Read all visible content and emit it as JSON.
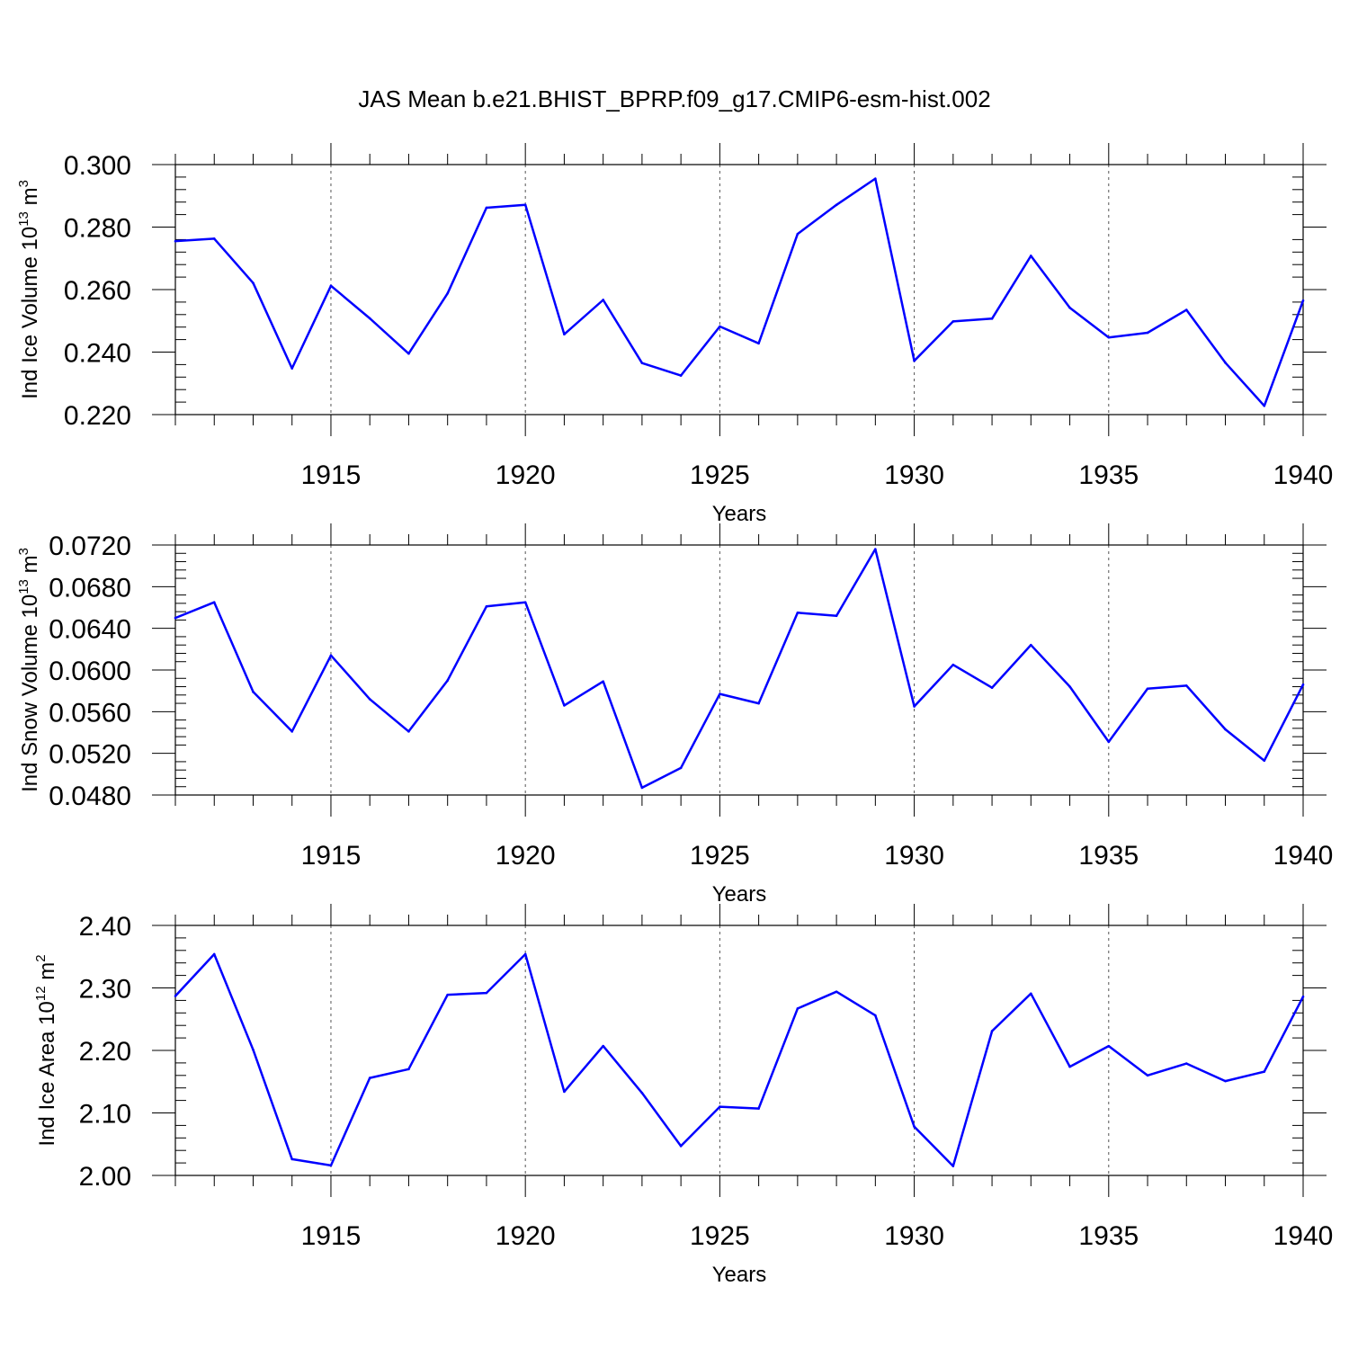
{
  "title": "JAS Mean b.e21.BHIST_BPRP.f09_g17.CMIP6-esm-hist.002",
  "colors": {
    "line": "#0000ff",
    "axis": "#000000",
    "grid": "#555555"
  },
  "chart_data": [
    {
      "type": "line",
      "ylabel": {
        "text": "Ind Ice Volume 10",
        "sup": "13",
        "unit": " m",
        "unit_sup": "3"
      },
      "xlabel": "Years",
      "xlim": [
        1911,
        1940
      ],
      "ylim": [
        0.22,
        0.3
      ],
      "yticks": [
        "0.220",
        "0.240",
        "0.260",
        "0.280",
        "0.300"
      ],
      "xticks": [
        "1915",
        "1920",
        "1925",
        "1930",
        "1935",
        "1940"
      ],
      "grid": "vertical dashed at major x ticks",
      "x": [
        1911,
        1912,
        1913,
        1914,
        1915,
        1916,
        1917,
        1918,
        1919,
        1920,
        1921,
        1922,
        1923,
        1924,
        1925,
        1926,
        1927,
        1928,
        1929,
        1930,
        1931,
        1932,
        1933,
        1934,
        1935,
        1936,
        1937,
        1938,
        1939,
        1940
      ],
      "series": [
        {
          "values": [
            0.2755,
            0.2763,
            0.2621,
            0.2348,
            0.2612,
            0.2508,
            0.2395,
            0.2588,
            0.2862,
            0.2871,
            0.2457,
            0.2567,
            0.2365,
            0.2325,
            0.2482,
            0.2428,
            0.2778,
            0.2871,
            0.2955,
            0.2372,
            0.2498,
            0.2507,
            0.2708,
            0.2542,
            0.2447,
            0.2462,
            0.2535,
            0.2366,
            0.2228,
            0.2565
          ]
        }
      ]
    },
    {
      "type": "line",
      "ylabel": {
        "text": "Ind Snow Volume 10",
        "sup": "13",
        "unit": " m",
        "unit_sup": "3"
      },
      "xlabel": "Years",
      "xlim": [
        1911,
        1940
      ],
      "ylim": [
        0.048,
        0.072
      ],
      "yticks": [
        "0.0480",
        "0.0520",
        "0.0560",
        "0.0600",
        "0.0640",
        "0.0680",
        "0.0720"
      ],
      "xticks": [
        "1915",
        "1920",
        "1925",
        "1930",
        "1935",
        "1940"
      ],
      "grid": "vertical dashed at major x ticks",
      "x": [
        1911,
        1912,
        1913,
        1914,
        1915,
        1916,
        1917,
        1918,
        1919,
        1920,
        1921,
        1922,
        1923,
        1924,
        1925,
        1926,
        1927,
        1928,
        1929,
        1930,
        1931,
        1932,
        1933,
        1934,
        1935,
        1936,
        1937,
        1938,
        1939,
        1940
      ],
      "series": [
        {
          "values": [
            0.065,
            0.0665,
            0.0579,
            0.0541,
            0.0614,
            0.0572,
            0.0541,
            0.059,
            0.0661,
            0.0665,
            0.0566,
            0.0589,
            0.0487,
            0.0506,
            0.0577,
            0.0568,
            0.0655,
            0.0652,
            0.0716,
            0.0565,
            0.0605,
            0.0583,
            0.0624,
            0.0584,
            0.0531,
            0.0582,
            0.0585,
            0.0543,
            0.0513,
            0.0586
          ]
        }
      ]
    },
    {
      "type": "line",
      "ylabel": {
        "text": "Ind Ice Area 10",
        "sup": "12",
        "unit": " m",
        "unit_sup": "2"
      },
      "xlabel": "Years",
      "xlim": [
        1911,
        1940
      ],
      "ylim": [
        2.0,
        2.4
      ],
      "yticks": [
        "2.00",
        "2.10",
        "2.20",
        "2.30",
        "2.40"
      ],
      "xticks": [
        "1915",
        "1920",
        "1925",
        "1930",
        "1935",
        "1940"
      ],
      "grid": "vertical dashed at major x ticks",
      "x": [
        1911,
        1912,
        1913,
        1914,
        1915,
        1916,
        1917,
        1918,
        1919,
        1920,
        1921,
        1922,
        1923,
        1924,
        1925,
        1926,
        1927,
        1928,
        1929,
        1930,
        1931,
        1932,
        1933,
        1934,
        1935,
        1936,
        1937,
        1938,
        1939,
        1940
      ],
      "series": [
        {
          "values": [
            2.287,
            2.354,
            2.201,
            2.026,
            2.016,
            2.156,
            2.17,
            2.289,
            2.292,
            2.354,
            2.134,
            2.207,
            2.132,
            2.047,
            2.11,
            2.107,
            2.267,
            2.294,
            2.256,
            2.078,
            2.015,
            2.231,
            2.291,
            2.174,
            2.207,
            2.16,
            2.179,
            2.151,
            2.166,
            2.286
          ]
        }
      ]
    }
  ]
}
